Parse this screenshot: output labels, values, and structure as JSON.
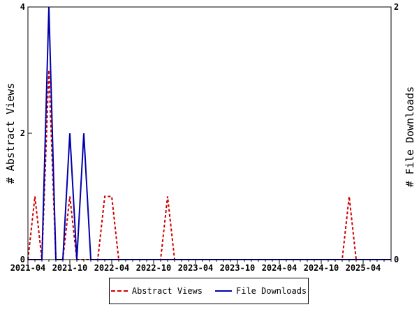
{
  "chart_data": {
    "type": "line",
    "title": "",
    "ylabel": "# Abstract Views",
    "y2label": "# File Downloads",
    "xlabel": "",
    "ylim": [
      0,
      4
    ],
    "y2lim": [
      0,
      2
    ],
    "yticks": [
      "0",
      "2",
      "4"
    ],
    "y2ticks": [
      "0",
      "2"
    ],
    "xticks": [
      "2021-04",
      "2021-10",
      "2022-04",
      "2022-10",
      "2023-04",
      "2023-10",
      "2024-04",
      "2024-10",
      "2025-04"
    ],
    "x": [
      "2021-04",
      "2021-05",
      "2021-06",
      "2021-07",
      "2021-08",
      "2021-09",
      "2021-10",
      "2021-11",
      "2021-12",
      "2022-01",
      "2022-02",
      "2022-03",
      "2022-04",
      "2022-05",
      "2022-06",
      "2022-07",
      "2022-08",
      "2022-09",
      "2022-10",
      "2022-11",
      "2022-12",
      "2023-01",
      "2023-02",
      "2023-03",
      "2023-04",
      "2023-05",
      "2023-06",
      "2023-07",
      "2023-08",
      "2023-09",
      "2023-10",
      "2023-11",
      "2023-12",
      "2024-01",
      "2024-02",
      "2024-03",
      "2024-04",
      "2024-05",
      "2024-06",
      "2024-07",
      "2024-08",
      "2024-09",
      "2024-10",
      "2024-11",
      "2024-12",
      "2025-01",
      "2025-02",
      "2025-03",
      "2025-04",
      "2025-05",
      "2025-06",
      "2025-07",
      "2025-08"
    ],
    "series": [
      {
        "name": "Abstract Views",
        "axis": "left",
        "color": "#cc0000",
        "dash": true,
        "values": [
          0,
          1,
          0,
          3,
          0,
          0,
          1,
          0,
          0,
          0,
          0,
          1,
          1,
          0,
          0,
          0,
          0,
          0,
          0,
          0,
          1,
          0,
          0,
          0,
          0,
          0,
          0,
          0,
          0,
          0,
          0,
          0,
          0,
          0,
          0,
          0,
          0,
          0,
          0,
          0,
          0,
          0,
          0,
          0,
          0,
          0,
          1,
          0,
          0,
          0,
          0,
          0,
          0
        ]
      },
      {
        "name": "File Downloads",
        "axis": "right",
        "color": "#0000aa",
        "dash": false,
        "values": [
          0,
          0,
          0,
          2,
          0,
          0,
          1,
          0,
          1,
          0,
          0,
          0,
          0,
          0,
          0,
          0,
          0,
          0,
          0,
          0,
          0,
          0,
          0,
          0,
          0,
          0,
          0,
          0,
          0,
          0,
          0,
          0,
          0,
          0,
          0,
          0,
          0,
          0,
          0,
          0,
          0,
          0,
          0,
          0,
          0,
          0,
          0,
          0,
          0,
          0,
          0,
          0,
          0
        ]
      }
    ],
    "grid": false,
    "legend": "bottom"
  }
}
